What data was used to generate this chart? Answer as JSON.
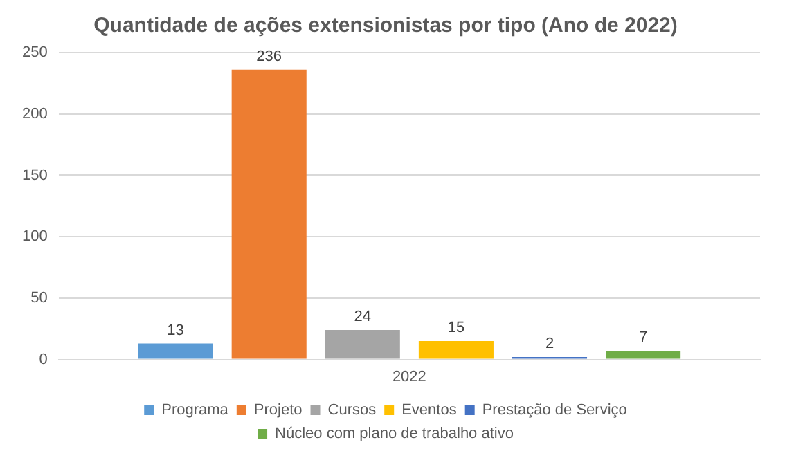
{
  "chart_data": {
    "type": "bar",
    "title": "Quantidade de ações extensionistas por tipo (Ano de 2022)",
    "categories": [
      "2022"
    ],
    "series": [
      {
        "name": "Programa",
        "color": "#5b9bd5",
        "values": [
          13
        ]
      },
      {
        "name": "Projeto",
        "color": "#ed7d31",
        "values": [
          236
        ]
      },
      {
        "name": "Cursos",
        "color": "#a5a5a5",
        "values": [
          24
        ]
      },
      {
        "name": "Eventos",
        "color": "#ffc000",
        "values": [
          15
        ]
      },
      {
        "name": "Prestação de Serviço",
        "color": "#4472c4",
        "values": [
          2
        ]
      },
      {
        "name": "Núcleo com plano de trabalho ativo",
        "color": "#70ad47",
        "values": [
          7
        ]
      }
    ],
    "ylim": [
      0,
      250
    ],
    "yticks": [
      0,
      50,
      100,
      150,
      200,
      250
    ],
    "grid": "y",
    "legend": "bottom",
    "data_labels": true
  }
}
